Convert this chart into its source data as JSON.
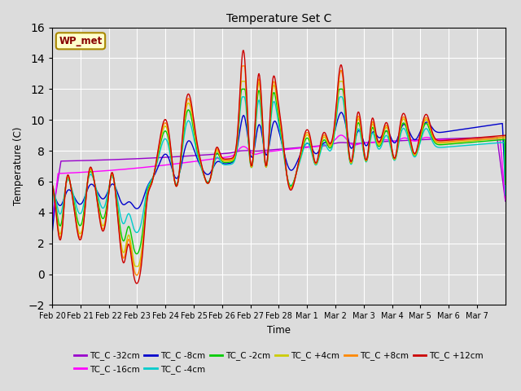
{
  "title": "Temperature Set C",
  "xlabel": "Time",
  "ylabel": "Temperature (C)",
  "ylim": [
    -2,
    16
  ],
  "yticks": [
    -2,
    0,
    2,
    4,
    6,
    8,
    10,
    12,
    14,
    16
  ],
  "bg_color": "#dcdcdc",
  "series_colors": {
    "TC_C -32cm": "#9900cc",
    "TC_C -16cm": "#ff00ff",
    "TC_C -8cm": "#0000cc",
    "TC_C -4cm": "#00cccc",
    "TC_C -2cm": "#00cc00",
    "TC_C +4cm": "#cccc00",
    "TC_C +8cm": "#ff8800",
    "TC_C +12cm": "#cc0000"
  },
  "annotation_text": "WP_met",
  "annotation_bg": "#ffffcc",
  "annotation_border": "#aa8800",
  "annotation_text_color": "#880000",
  "tick_labels": [
    "Feb 20",
    "Feb 21",
    "Feb 22",
    "Feb 23",
    "Feb 24",
    "Feb 25",
    "Feb 26",
    "Feb 27",
    "Feb 28",
    "Mar 1",
    "Mar 2",
    "Mar 3",
    "Mar 4",
    "Mar 5",
    "Mar 6",
    "Mar 7"
  ],
  "n_days": 16,
  "ppd": 48
}
